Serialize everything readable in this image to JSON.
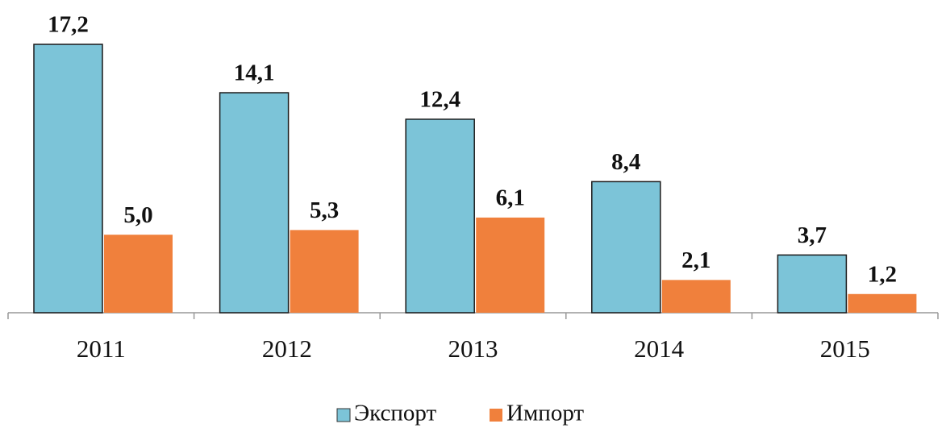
{
  "chart_data": {
    "type": "bar",
    "categories": [
      "2011",
      "2012",
      "2013",
      "2014",
      "2015"
    ],
    "series": [
      {
        "name": "Экспорт",
        "color": "#7cc4d8",
        "values": [
          17.2,
          14.1,
          12.4,
          8.4,
          3.7
        ],
        "value_labels": [
          "17,2",
          "14,1",
          "12,4",
          "8,4",
          "3,7"
        ]
      },
      {
        "name": "Импорт",
        "color": "#f0803c",
        "values": [
          5.0,
          5.3,
          6.1,
          2.1,
          1.2
        ],
        "value_labels": [
          "5,0",
          "5,3",
          "6,1",
          "2,1",
          "1,2"
        ]
      }
    ]
  }
}
